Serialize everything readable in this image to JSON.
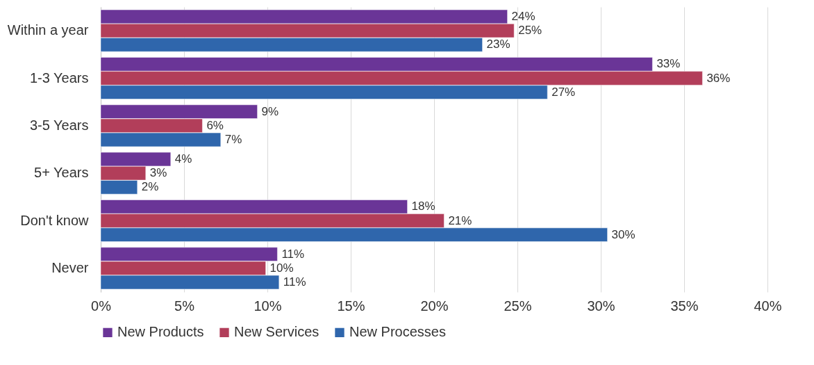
{
  "chart_data": {
    "type": "bar",
    "orientation": "horizontal",
    "categories": [
      "Within a year",
      "1-3 Years",
      "3-5 Years",
      "5+ Years",
      "Don't know",
      "Never"
    ],
    "series": [
      {
        "name": "New Products",
        "color": "#6a3597",
        "values": [
          24.4,
          33.1,
          9.4,
          4.2,
          18.4,
          10.6
        ],
        "value_labels": [
          "24%",
          "33%",
          "9%",
          "4%",
          "18%",
          "11%"
        ]
      },
      {
        "name": "New Services",
        "color": "#b23e5a",
        "values": [
          24.8,
          36.1,
          6.1,
          2.7,
          20.6,
          9.9
        ],
        "value_labels": [
          "25%",
          "36%",
          "6%",
          "3%",
          "21%",
          "10%"
        ]
      },
      {
        "name": "New Processes",
        "color": "#2f66ac",
        "values": [
          22.9,
          26.8,
          7.2,
          2.2,
          30.4,
          10.7
        ],
        "value_labels": [
          "23%",
          "27%",
          "7%",
          "2%",
          "30%",
          "11%"
        ]
      }
    ],
    "xlim": [
      0,
      40
    ],
    "xticks": [
      {
        "value": 0,
        "label": "0%"
      },
      {
        "value": 5,
        "label": "5%"
      },
      {
        "value": 10,
        "label": "10%"
      },
      {
        "value": 15,
        "label": "15%"
      },
      {
        "value": 20,
        "label": "20%"
      },
      {
        "value": 25,
        "label": "25%"
      },
      {
        "value": 30,
        "label": "30%"
      },
      {
        "value": 35,
        "label": "35%"
      },
      {
        "value": 40,
        "label": "40%"
      }
    ],
    "grid": "x",
    "legend": "bottom"
  }
}
